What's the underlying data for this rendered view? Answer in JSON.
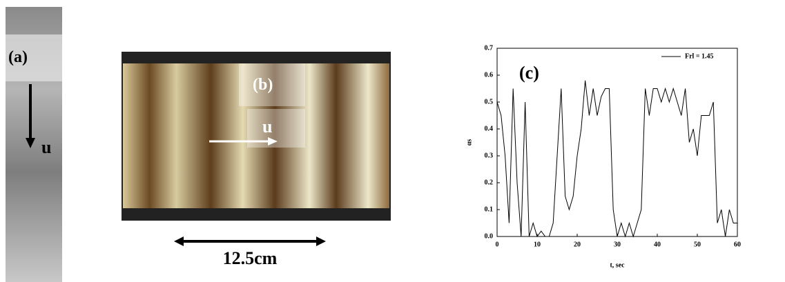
{
  "panel_a": {
    "label": "(a)",
    "arrow_label": "u"
  },
  "panel_b": {
    "label": "(b)",
    "arrow_label": "u",
    "scale_label": "12.5cm"
  },
  "chart_data": {
    "type": "line",
    "panel_label": "(c)",
    "x_label": "t, sec",
    "y_label": "αs",
    "x": [
      0,
      1,
      2,
      3,
      4,
      5,
      6,
      7,
      8,
      9,
      10,
      11,
      12,
      13,
      14,
      15,
      16,
      17,
      18,
      19,
      20,
      21,
      22,
      23,
      24,
      25,
      26,
      27,
      28,
      29,
      30,
      31,
      32,
      33,
      34,
      35,
      36,
      37,
      38,
      39,
      40,
      41,
      42,
      43,
      44,
      45,
      46,
      47,
      48,
      49,
      50,
      51,
      52,
      53,
      54,
      55,
      56,
      57,
      58,
      59,
      60
    ],
    "series": [
      {
        "name": "Frl = 1.45",
        "color": "#000000",
        "values": [
          0.5,
          0.45,
          0.3,
          0.05,
          0.55,
          0.2,
          0.0,
          0.5,
          0.0,
          0.05,
          0.0,
          0.02,
          0.0,
          0.0,
          0.05,
          0.3,
          0.55,
          0.15,
          0.1,
          0.15,
          0.3,
          0.4,
          0.58,
          0.45,
          0.55,
          0.45,
          0.52,
          0.55,
          0.55,
          0.1,
          0.0,
          0.05,
          0.0,
          0.05,
          0.0,
          0.05,
          0.1,
          0.55,
          0.45,
          0.55,
          0.55,
          0.5,
          0.55,
          0.5,
          0.55,
          0.5,
          0.45,
          0.55,
          0.35,
          0.4,
          0.3,
          0.45,
          0.45,
          0.45,
          0.5,
          0.05,
          0.1,
          0.0,
          0.1,
          0.05,
          0.05
        ]
      }
    ],
    "xlim": [
      0,
      60
    ],
    "xticks": [
      0,
      10,
      20,
      30,
      40,
      50,
      60
    ],
    "ylim": [
      0,
      0.7
    ],
    "yticks": [
      {
        "value": 0,
        "label": "0.0"
      },
      {
        "value": 0.1,
        "label": "0.1"
      },
      {
        "value": 0.2,
        "label": "0.2"
      },
      {
        "value": 0.3,
        "label": "0.3"
      },
      {
        "value": 0.4,
        "label": "0.4"
      },
      {
        "value": 0.5,
        "label": "0.5"
      },
      {
        "value": 0.6,
        "label": "0.6"
      },
      {
        "value": 0.7,
        "label": "0.7"
      }
    ],
    "legend": "upper right"
  }
}
